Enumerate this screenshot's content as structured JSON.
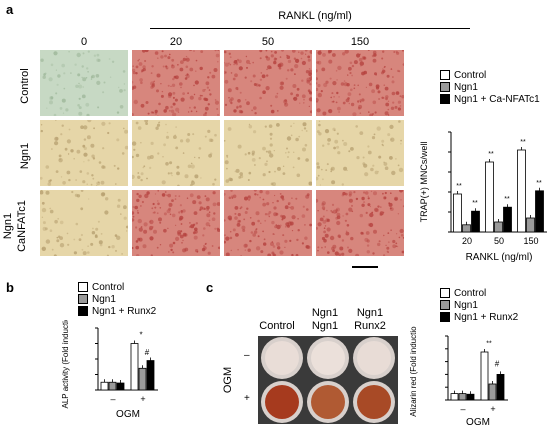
{
  "figure": {
    "panels": {
      "a": {
        "letter": "a",
        "header": "RANKL (ng/ml)",
        "columns": [
          "0",
          "20",
          "50",
          "150"
        ],
        "rows": [
          "Control",
          "Ngn1",
          "Ngn1",
          "CaNFATc1"
        ],
        "legend": [
          "Control",
          "Ngn1",
          "Ngn1 + Ca-NFATc1"
        ],
        "colors": {
          "control": "#ffffff",
          "ngn1": "#9a9a9a",
          "ca": "#000000",
          "tile_green": "#c7d9c4",
          "tile_red": "#d7867d",
          "tile_tan": "#e6d6a8"
        }
      },
      "b": {
        "letter": "b",
        "legend": [
          "Control",
          "Ngn1",
          "Ngn1 + Runx2"
        ],
        "xaxis": "OGM",
        "ticks": [
          "–",
          "+"
        ],
        "sig": [
          "*",
          "#"
        ]
      },
      "c": {
        "letter": "c",
        "col_labels": [
          "Control",
          "Ngn1",
          "Ngn1\nRunx2"
        ],
        "ngn1_label": "Ngn1",
        "runx2_label": "Runx2",
        "row_labels": [
          "–",
          "+"
        ],
        "side_label": "OGM",
        "legend": [
          "Control",
          "Ngn1",
          "Ngn1 + Runx2"
        ],
        "xaxis": "OGM",
        "ticks": [
          "–",
          "+"
        ],
        "sig": [
          "**",
          "#"
        ]
      }
    }
  },
  "chart_data": [
    {
      "type": "bar",
      "panel": "a",
      "ylabel": "TRAP(+) MNCs/well",
      "xlabel": "RANKL (ng/ml)",
      "categories": [
        "20",
        "50",
        "150"
      ],
      "ylim": [
        0,
        250
      ],
      "yticks": [
        0,
        50,
        100,
        150,
        200,
        250
      ],
      "series": [
        {
          "name": "Control",
          "values": [
            95,
            175,
            205
          ]
        },
        {
          "name": "Ngn1",
          "values": [
            18,
            25,
            35
          ]
        },
        {
          "name": "Ngn1 + Ca-NFATc1",
          "values": [
            52,
            62,
            103
          ]
        }
      ],
      "significance": [
        "**",
        "**"
      ]
    },
    {
      "type": "bar",
      "panel": "b",
      "ylabel": "ALP activity (Fold induction)",
      "xlabel": "OGM",
      "categories": [
        "–",
        "+"
      ],
      "ylim": [
        0,
        8
      ],
      "yticks": [
        0,
        2,
        4,
        6,
        8
      ],
      "series": [
        {
          "name": "Control",
          "values": [
            1,
            6
          ]
        },
        {
          "name": "Ngn1",
          "values": [
            1,
            2.8
          ]
        },
        {
          "name": "Ngn1 + Runx2",
          "values": [
            0.9,
            3.8
          ]
        }
      ]
    },
    {
      "type": "bar",
      "panel": "c",
      "ylabel": "Alizarin red (Fold induction)",
      "xlabel": "OGM",
      "categories": [
        "–",
        "+"
      ],
      "ylim": [
        0,
        10
      ],
      "yticks": [
        0,
        2,
        4,
        6,
        8,
        10
      ],
      "series": [
        {
          "name": "Control",
          "values": [
            1,
            7.5
          ]
        },
        {
          "name": "Ngn1",
          "values": [
            1,
            2.5
          ]
        },
        {
          "name": "Ngn1 + Runx2",
          "values": [
            0.9,
            4
          ]
        }
      ]
    }
  ]
}
